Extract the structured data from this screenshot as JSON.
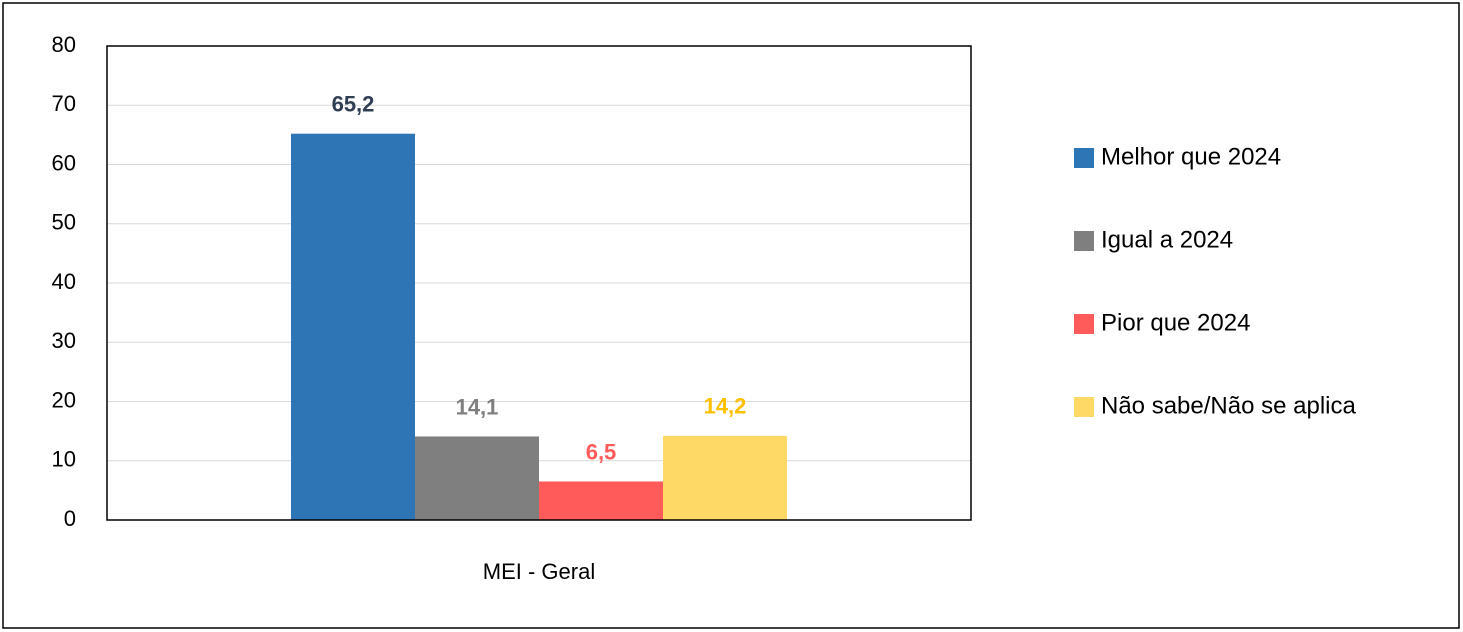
{
  "chart_data": {
    "type": "bar",
    "categories": [
      "MEI - Geral"
    ],
    "series": [
      {
        "name": "Melhor que 2024",
        "color": "#2e75b6",
        "label_color": "#2f3e52",
        "values": [
          65.2
        ],
        "value_labels": [
          "65,2"
        ]
      },
      {
        "name": "Igual a 2024",
        "color": "#7f7f7f",
        "label_color": "#7f7f7f",
        "values": [
          14.1
        ],
        "value_labels": [
          "14,1"
        ]
      },
      {
        "name": "Pior que 2024",
        "color": "#ff5b5b",
        "label_color": "#ff5b5b",
        "values": [
          6.5
        ],
        "value_labels": [
          "6,5"
        ]
      },
      {
        "name": "Não sabe/Não se aplica",
        "color": "#ffd966",
        "label_color": "#ffc000",
        "values": [
          14.2
        ],
        "value_labels": [
          "14,2"
        ]
      }
    ],
    "ylim": [
      0,
      80
    ],
    "yticks": [
      0,
      10,
      20,
      30,
      40,
      50,
      60,
      70,
      80
    ],
    "grid": true,
    "legend": "right"
  }
}
